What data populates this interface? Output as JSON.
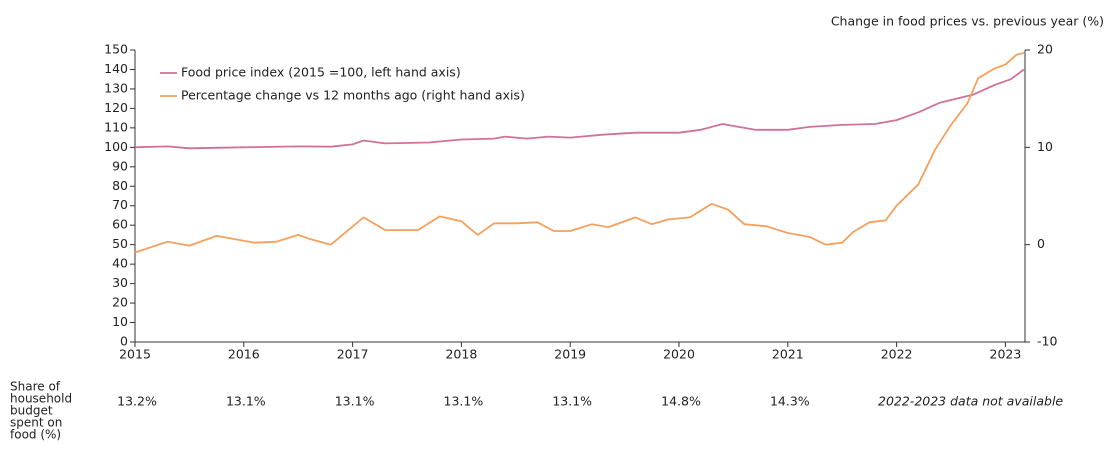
{
  "chart_data": {
    "type": "line",
    "y2label": "Change in food prices vs. previous year (%)",
    "xlim": [
      2015,
      2023.18
    ],
    "xticks": [
      2015,
      2016,
      2017,
      2018,
      2019,
      2020,
      2021,
      2022,
      2023
    ],
    "ylim": [
      0,
      150
    ],
    "yticks": [
      0,
      10,
      20,
      30,
      40,
      50,
      60,
      70,
      80,
      90,
      100,
      110,
      120,
      130,
      140,
      150
    ],
    "y2lim": [
      -10,
      20
    ],
    "y2ticks": [
      -10,
      0,
      10,
      20
    ],
    "legend": "top-left",
    "series": [
      {
        "name": "Food price index (2015 =100, left hand axis)",
        "color": "#d0719a",
        "axis": "y",
        "x": [
          2015,
          2015.3,
          2015.5,
          2015.8,
          2016,
          2016.5,
          2016.8,
          2017,
          2017.1,
          2017.3,
          2017.7,
          2018,
          2018.3,
          2018.4,
          2018.6,
          2018.8,
          2019,
          2019.3,
          2019.6,
          2020,
          2020.2,
          2020.4,
          2020.7,
          2021,
          2021.2,
          2021.5,
          2021.8,
          2022,
          2022.2,
          2022.4,
          2022.7,
          2022.9,
          2023.05,
          2023.17
        ],
        "values": [
          100,
          100.5,
          99.5,
          99.8,
          100,
          100.5,
          100.3,
          101.5,
          103.5,
          102,
          102.5,
          104,
          104.5,
          105.5,
          104.5,
          105.5,
          105,
          106.5,
          107.5,
          107.5,
          109,
          112,
          109,
          109,
          110.5,
          111.5,
          112,
          114,
          118,
          123,
          127,
          132,
          135,
          140
        ]
      },
      {
        "name": "Percentage change vs 12 months ago (right hand axis)",
        "color": "#f5a05c",
        "axis": "y2",
        "x": [
          2015,
          2015.3,
          2015.5,
          2015.75,
          2016,
          2016.1,
          2016.3,
          2016.5,
          2016.6,
          2016.8,
          2017.1,
          2017.3,
          2017.6,
          2017.8,
          2018,
          2018.15,
          2018.3,
          2018.5,
          2018.7,
          2018.85,
          2019,
          2019.2,
          2019.35,
          2019.6,
          2019.75,
          2019.9,
          2020.1,
          2020.3,
          2020.45,
          2020.6,
          2020.8,
          2021,
          2021.2,
          2021.35,
          2021.5,
          2021.6,
          2021.75,
          2021.9,
          2022,
          2022.2,
          2022.35,
          2022.5,
          2022.65,
          2022.75,
          2022.9,
          2023,
          2023.1,
          2023.17
        ],
        "values": [
          -0.8,
          0.3,
          -0.1,
          0.9,
          0.4,
          0.2,
          0.3,
          1.0,
          0.6,
          0.0,
          2.8,
          1.5,
          1.5,
          2.9,
          2.4,
          1.0,
          2.2,
          2.2,
          2.3,
          1.4,
          1.4,
          2.1,
          1.8,
          2.8,
          2.1,
          2.6,
          2.8,
          4.2,
          3.6,
          2.1,
          1.9,
          1.2,
          0.8,
          0.0,
          0.2,
          1.3,
          2.3,
          2.5,
          4.0,
          6.2,
          9.7,
          12.3,
          14.5,
          17.1,
          18.1,
          18.5,
          19.5,
          19.7
        ]
      }
    ]
  },
  "share_row": {
    "label_lines": [
      "Share of",
      "household",
      "budget",
      "spent on",
      "food (%)"
    ],
    "values": [
      "13.2%",
      "13.1%",
      "13.1%",
      "13.1%",
      "13.1%",
      "14.8%",
      "14.3%"
    ],
    "note": "2022-2023 data not available"
  }
}
